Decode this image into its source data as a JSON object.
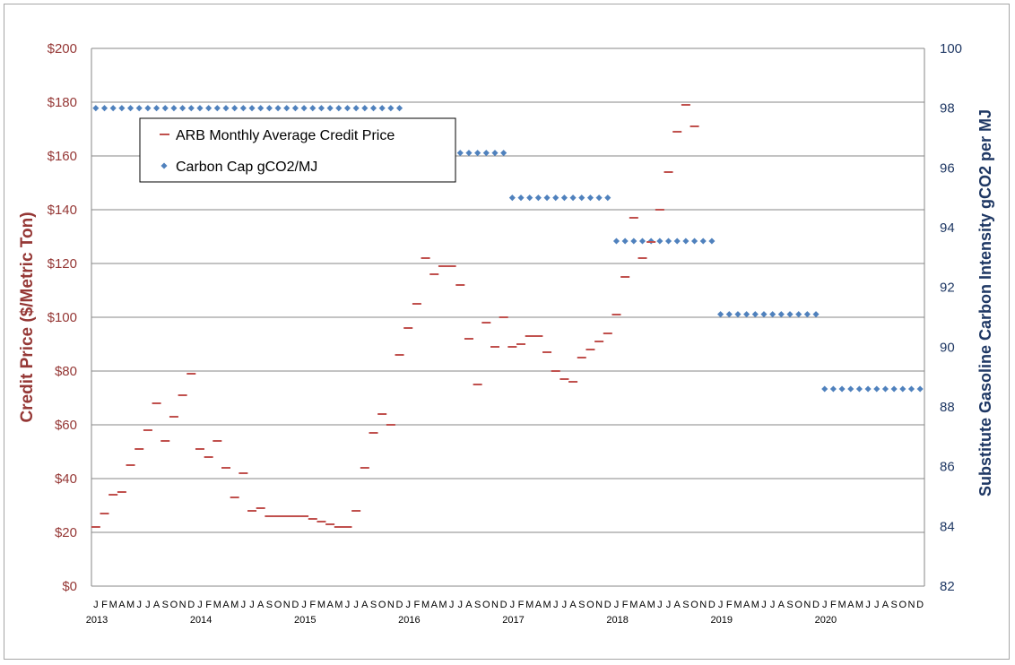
{
  "chart_data": {
    "type": "scatter",
    "y_left_label": "Credit Price  ($/Metric  Ton)",
    "y_right_label": "Substitute Gasoline Carbon Intensity gCO2 per MJ",
    "y_left_range": [
      0,
      200
    ],
    "y_left_ticks": [
      "$0",
      "$20",
      "$40",
      "$60",
      "$80",
      "$100",
      "$120",
      "$140",
      "$160",
      "$180",
      "$200"
    ],
    "y_right_range": [
      82,
      100
    ],
    "y_right_ticks": [
      "82",
      "84",
      "86",
      "88",
      "90",
      "92",
      "94",
      "96",
      "98",
      "100"
    ],
    "years": [
      "2013",
      "2014",
      "2015",
      "2016",
      "2017",
      "2018",
      "2019",
      "2020"
    ],
    "month_letters": [
      "J",
      "F",
      "M",
      "A",
      "M",
      "J",
      "J",
      "A",
      "S",
      "O",
      "N",
      "D"
    ],
    "grid": "horizontal",
    "legend_position": "top-left",
    "series": [
      {
        "name": "ARB Monthly Average Credit Price",
        "axis": "left",
        "color": "#c0504d",
        "marker": "dash",
        "values": [
          22,
          27,
          34,
          35,
          45,
          51,
          58,
          68,
          54,
          63,
          71,
          79,
          51,
          48,
          54,
          44,
          33,
          42,
          28,
          29,
          26,
          26,
          26,
          26,
          26,
          25,
          24,
          23,
          22,
          22,
          28,
          44,
          57,
          64,
          60,
          86,
          96,
          105,
          122,
          116,
          119,
          119,
          112,
          92,
          75,
          98,
          89,
          100,
          89,
          90,
          93,
          93,
          87,
          80,
          77,
          76,
          85,
          88,
          91,
          94,
          101,
          115,
          137,
          122,
          128,
          140,
          154,
          169,
          179,
          171,
          null,
          null
        ]
      },
      {
        "name": "Carbon Cap gCO2/MJ",
        "axis": "right",
        "color": "#4f81bd",
        "marker": "diamond",
        "segments": [
          {
            "start": "2013-01",
            "end": "2015-12",
            "value": 98.0
          },
          {
            "start": "2016-01",
            "end": "2016-12",
            "value": 96.5
          },
          {
            "start": "2017-01",
            "end": "2017-12",
            "value": 95.0
          },
          {
            "start": "2018-01",
            "end": "2018-12",
            "value": 93.55
          },
          {
            "start": "2019-01",
            "end": "2019-12",
            "value": 91.1
          },
          {
            "start": "2020-01",
            "end": "2020-12",
            "value": 88.6
          }
        ]
      }
    ]
  }
}
